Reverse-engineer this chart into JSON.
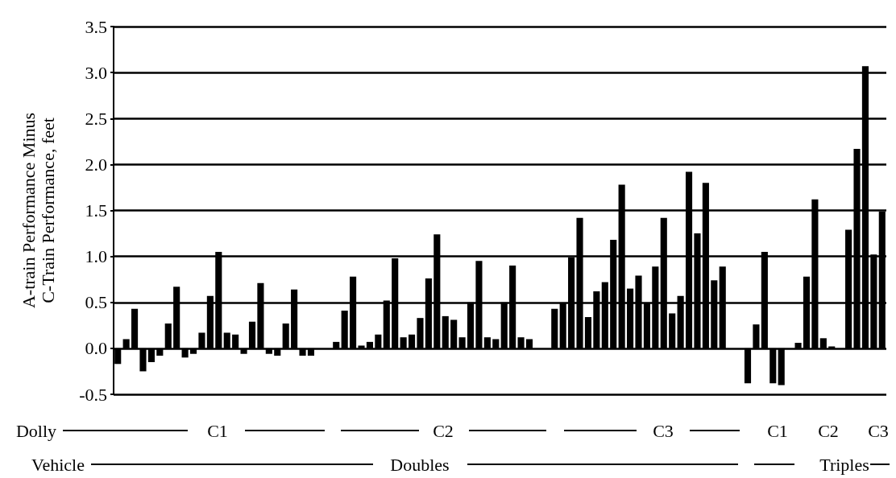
{
  "chart_data": {
    "type": "bar",
    "ylabel": "A-train Performance Minus\nC-Train Performance, feet",
    "categories": [
      null,
      null,
      null,
      null,
      null,
      null,
      null,
      null,
      null,
      null,
      null,
      null,
      null,
      null,
      null,
      null,
      null,
      null,
      null,
      null,
      null,
      null,
      null,
      null,
      null,
      null,
      null,
      null,
      null,
      null,
      null,
      null,
      null,
      null,
      null,
      null,
      null,
      null,
      null,
      null,
      null,
      null,
      null,
      null,
      null,
      null,
      null,
      null,
      null,
      null,
      null,
      null,
      null,
      null,
      null,
      null,
      null,
      null,
      null,
      null,
      null,
      null,
      null,
      null,
      null,
      null,
      null,
      null,
      null,
      null,
      null,
      null,
      null,
      null,
      null,
      null,
      null,
      null,
      null,
      null,
      null,
      null,
      null,
      null,
      null,
      null,
      null,
      null,
      null,
      null,
      null,
      null
    ],
    "values": [
      -0.17,
      0.1,
      0.43,
      -0.25,
      -0.15,
      -0.08,
      0.27,
      0.67,
      -0.1,
      -0.06,
      0.17,
      0.57,
      1.05,
      0.17,
      0.15,
      -0.06,
      0.29,
      0.71,
      -0.06,
      -0.08,
      0.27,
      0.64,
      -0.08,
      -0.08,
      null,
      null,
      0.07,
      0.41,
      0.78,
      0.03,
      0.07,
      0.15,
      0.52,
      0.98,
      0.12,
      0.15,
      0.33,
      0.76,
      1.24,
      0.35,
      0.31,
      0.12,
      0.5,
      0.95,
      0.12,
      0.1,
      0.5,
      0.9,
      0.12,
      0.1,
      null,
      null,
      0.43,
      0.49,
      0.99,
      1.42,
      0.34,
      0.62,
      0.72,
      1.18,
      1.78,
      0.65,
      0.79,
      0.49,
      0.89,
      1.42,
      0.38,
      0.57,
      1.92,
      1.25,
      1.8,
      0.74,
      0.89,
      null,
      null,
      -0.38,
      0.26,
      1.05,
      -0.38,
      -0.4,
      null,
      0.06,
      0.78,
      1.62,
      0.11,
      0.02,
      null,
      1.29,
      2.17,
      3.07,
      1.02,
      1.49
    ],
    "color": "#000000",
    "ylim": [
      -0.5,
      3.5
    ],
    "yticks": [
      {
        "value": -0.5,
        "label": "-0.5"
      },
      {
        "value": 0,
        "label": "0.0"
      },
      {
        "value": 0.5,
        "label": "0.5"
      },
      {
        "value": 1,
        "label": "1.0"
      },
      {
        "value": 1.5,
        "label": "1.5"
      },
      {
        "value": 2,
        "label": "2.0"
      },
      {
        "value": 2.5,
        "label": "2.5"
      },
      {
        "value": 3,
        "label": "3.0"
      },
      {
        "value": 3.5,
        "label": "3.5"
      }
    ],
    "grid": "y",
    "tick_labels": "y",
    "annotations": [
      "Dolly",
      "C1",
      "C2",
      "C3",
      "C1",
      "C2",
      "C3",
      "Vehicle",
      "Doubles",
      "Triples"
    ]
  }
}
